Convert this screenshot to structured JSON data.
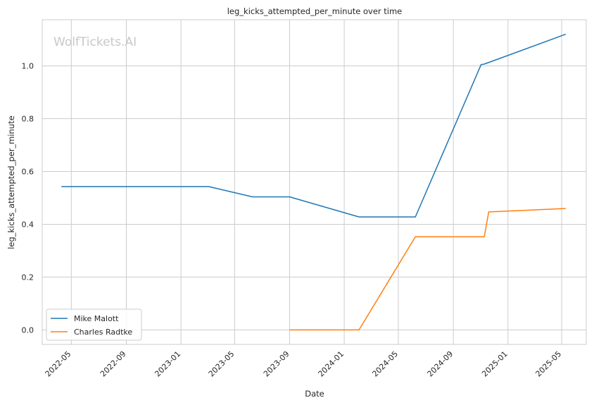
{
  "chart_data": {
    "type": "line",
    "title": "leg_kicks_attempted_per_minute over time",
    "xlabel": "Date",
    "ylabel": "leg_kicks_attempted_per_minute",
    "watermark": "WolfTickets.AI",
    "x_ticks": [
      "2022-05",
      "2022-09",
      "2023-01",
      "2023-05",
      "2023-09",
      "2024-01",
      "2024-05",
      "2024-09",
      "2025-01",
      "2025-05"
    ],
    "y_ticks": [
      "0.0",
      "0.2",
      "0.4",
      "0.6",
      "0.8",
      "1.0"
    ],
    "xlim": [
      "2022-02-25",
      "2025-06-25"
    ],
    "ylim": [
      -0.055,
      1.175
    ],
    "grid": true,
    "legend_position": "lower-left",
    "series": [
      {
        "name": "Mike Malott",
        "color": "#1f77b4",
        "points": [
          [
            "2022-04-09",
            0.543
          ],
          [
            "2023-03-04",
            0.543
          ],
          [
            "2023-06-10",
            0.504
          ],
          [
            "2023-09-01",
            0.504
          ],
          [
            "2024-02-03",
            0.428
          ],
          [
            "2024-06-08",
            0.428
          ],
          [
            "2024-11-02",
            1.005
          ],
          [
            "2024-11-09",
            1.007
          ],
          [
            "2025-05-10",
            1.12
          ]
        ]
      },
      {
        "name": "Charles Radtke",
        "color": "#ff7f0e",
        "points": [
          [
            "2023-09-01",
            0.0
          ],
          [
            "2024-02-03",
            0.0
          ],
          [
            "2024-06-08",
            0.353
          ],
          [
            "2024-11-09",
            0.353
          ],
          [
            "2024-11-19",
            0.447
          ],
          [
            "2025-05-10",
            0.46
          ]
        ]
      }
    ]
  }
}
